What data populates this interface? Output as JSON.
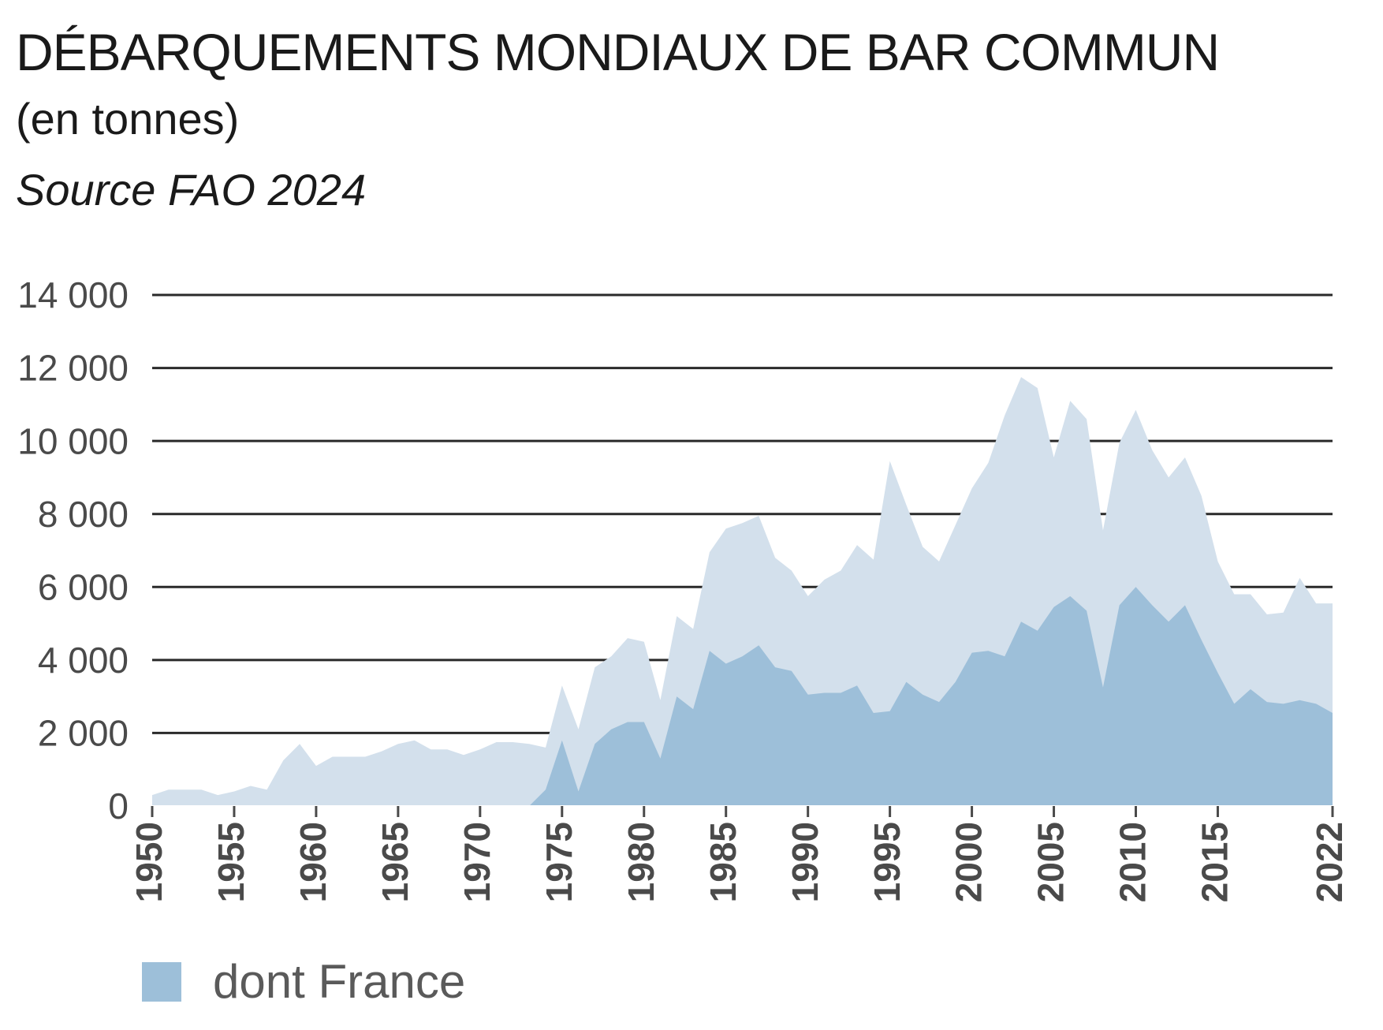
{
  "chart_data": {
    "type": "area",
    "title": "DÉBARQUEMENTS MONDIAUX DE BAR COMMUN",
    "subtitle": "(en tonnes)",
    "source": "Source FAO 2024",
    "ylim": [
      0,
      14000
    ],
    "yticks": [
      0,
      2000,
      4000,
      6000,
      8000,
      10000,
      12000,
      14000
    ],
    "ytick_labels": [
      "0",
      "2 000",
      "4 000",
      "6 000",
      "8 000",
      "10 000",
      "12 000",
      "14 000"
    ],
    "xlim": [
      1950,
      2022
    ],
    "xticks": [
      1950,
      1955,
      1960,
      1965,
      1970,
      1975,
      1980,
      1985,
      1990,
      1995,
      2000,
      2005,
      2010,
      2015,
      2022
    ],
    "grid": true,
    "legend_position": "bottom-left",
    "x": [
      1950,
      1951,
      1952,
      1953,
      1954,
      1955,
      1956,
      1957,
      1958,
      1959,
      1960,
      1961,
      1962,
      1963,
      1964,
      1965,
      1966,
      1967,
      1968,
      1969,
      1970,
      1971,
      1972,
      1973,
      1974,
      1975,
      1976,
      1977,
      1978,
      1979,
      1980,
      1981,
      1982,
      1983,
      1984,
      1985,
      1986,
      1987,
      1988,
      1989,
      1990,
      1991,
      1992,
      1993,
      1994,
      1995,
      1996,
      1997,
      1998,
      1999,
      2000,
      2001,
      2002,
      2003,
      2004,
      2005,
      2006,
      2007,
      2008,
      2009,
      2010,
      2011,
      2012,
      2013,
      2014,
      2015,
      2016,
      2017,
      2018,
      2019,
      2020,
      2021,
      2022
    ],
    "series": [
      {
        "name": "",
        "color": "#d3e0ec",
        "values": [
          300,
          450,
          450,
          450,
          300,
          400,
          550,
          450,
          1250,
          1700,
          1100,
          1350,
          1350,
          1350,
          1500,
          1700,
          1800,
          1550,
          1550,
          1400,
          1550,
          1750,
          1750,
          1700,
          1600,
          3300,
          2100,
          3800,
          4100,
          4600,
          4500,
          2900,
          5200,
          4850,
          6950,
          7600,
          7750,
          7950,
          6800,
          6450,
          5750,
          6200,
          6450,
          7150,
          6750,
          9450,
          8250,
          7100,
          6700,
          7700,
          8700,
          9400,
          10700,
          11750,
          11450,
          9550,
          11100,
          10600,
          7550,
          9950,
          10850,
          9750,
          9000,
          9550,
          8500,
          6700,
          5800,
          5800,
          5250,
          5300,
          6250,
          5550,
          5550
        ]
      },
      {
        "name": "dont France",
        "color": "#9dbfd9",
        "values": [
          0,
          0,
          0,
          0,
          0,
          0,
          0,
          0,
          0,
          0,
          0,
          0,
          0,
          0,
          0,
          0,
          0,
          0,
          0,
          0,
          0,
          0,
          0,
          0,
          450,
          1800,
          400,
          1700,
          2100,
          2300,
          2300,
          1300,
          3000,
          2650,
          4250,
          3900,
          4100,
          4400,
          3800,
          3700,
          3050,
          3100,
          3100,
          3300,
          2550,
          2600,
          3400,
          3050,
          2850,
          3400,
          4200,
          4250,
          4100,
          5050,
          4800,
          5450,
          5750,
          5350,
          3250,
          5500,
          6000,
          5500,
          5050,
          5500,
          4550,
          3650,
          2800,
          3200,
          2850,
          2800,
          2900,
          2800,
          2550
        ]
      }
    ]
  }
}
